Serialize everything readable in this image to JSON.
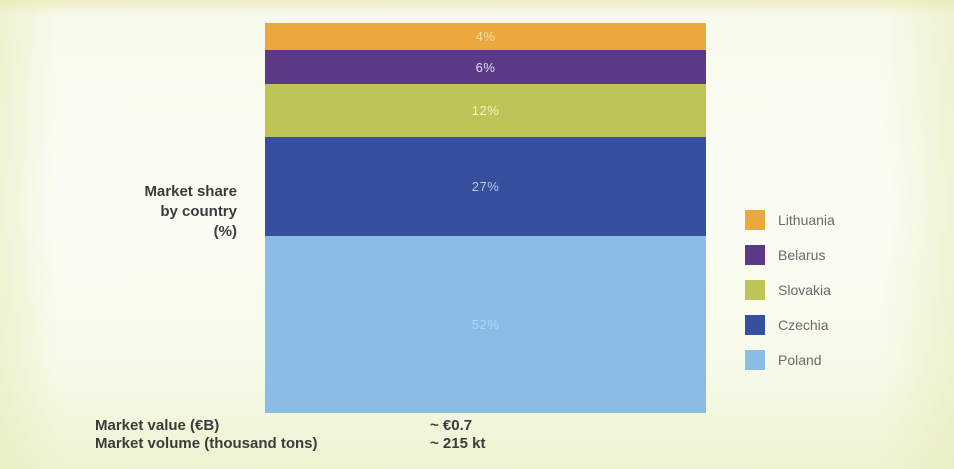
{
  "chart_data": {
    "type": "bar",
    "subtype": "100%-stacked-single-column",
    "title": "Market share by country (%)",
    "title_lines": [
      "Market share",
      "by country",
      "(%)"
    ],
    "unit": "%",
    "grid": false,
    "legend_position": "right",
    "segments_top_to_bottom": [
      {
        "name": "Lithuania",
        "value": 4,
        "label": "4%",
        "color": "#EBA83F",
        "label_color": "#F3DFA6"
      },
      {
        "name": "Belarus",
        "value": 6,
        "label": "6%",
        "color": "#5A3A87",
        "label_color": "#E4DCF2"
      },
      {
        "name": "Slovakia",
        "value": 12,
        "label": "12%",
        "color": "#BFC457",
        "label_color": "#F0F2CD"
      },
      {
        "name": "Czechia",
        "value": 27,
        "label": "27%",
        "color": "#36509E",
        "label_color": "#B3C6EC"
      },
      {
        "name": "Poland",
        "value": 52,
        "label": "52%",
        "color": "#8ABDE6",
        "label_color": "#AFD5F2"
      }
    ],
    "legend_entries": [
      {
        "label": "Lithuania",
        "color": "#EBA83F"
      },
      {
        "label": "Belarus",
        "color": "#5A3A87"
      },
      {
        "label": "Slovakia",
        "color": "#BFC457"
      },
      {
        "label": "Czechia",
        "color": "#36509E"
      },
      {
        "label": "Poland",
        "color": "#8ABDE6"
      }
    ]
  },
  "footer": {
    "rows": [
      {
        "label": "Market value (€B)",
        "value": "~ €0.7"
      },
      {
        "label": "Market volume (thousand tons)",
        "value": "~ 215 kt"
      }
    ]
  },
  "colors": {
    "background_top_band": "#F0EDC2",
    "background_main": "#FBFDF5",
    "background_bottom_band": "#EEF3D2",
    "title_text": "#3B3B3B",
    "legend_text": "#6A6A6A"
  }
}
